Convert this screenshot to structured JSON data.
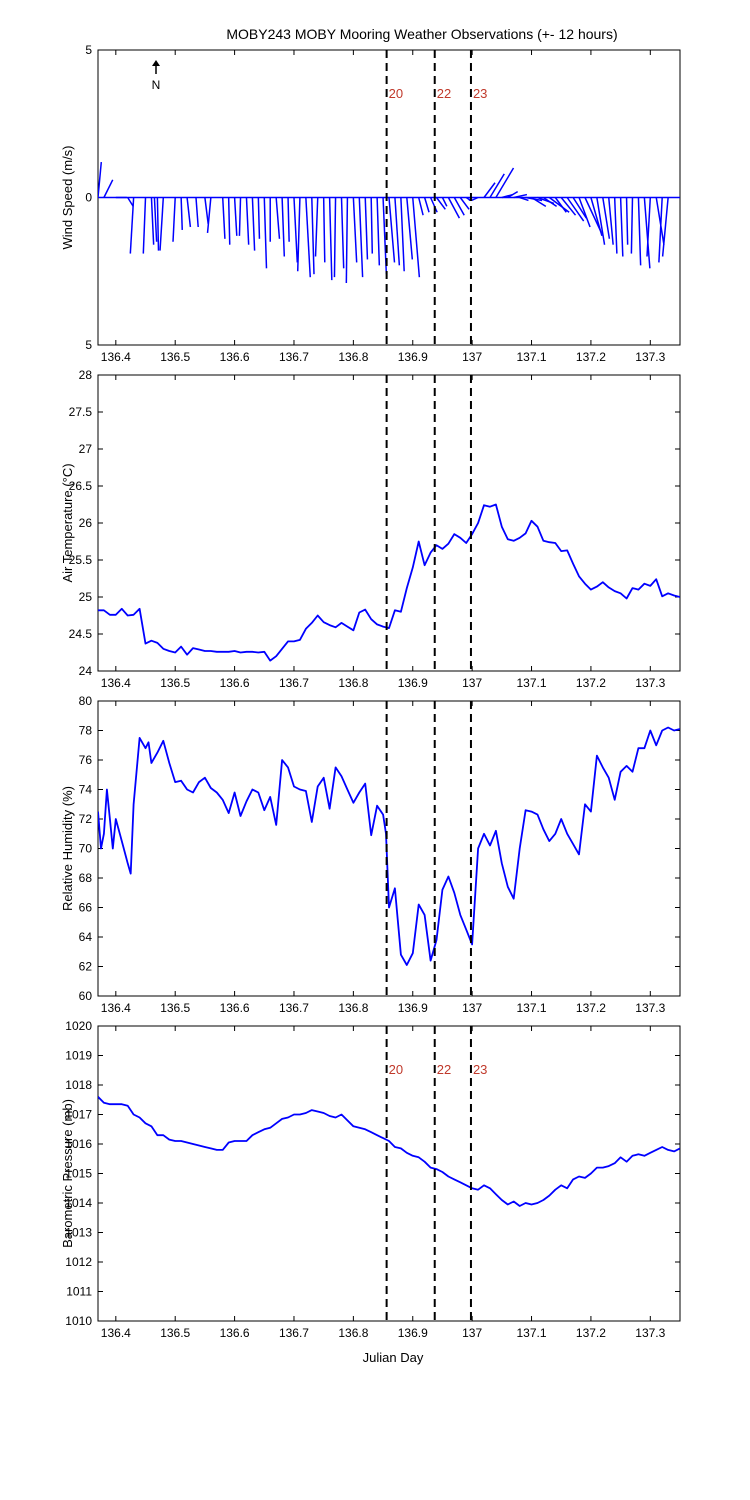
{
  "title": "MOBY243 MOBY Mooring Weather Observations (+- 12 hours)",
  "north_label": "N",
  "xlabel": "Julian Day",
  "x_ticks": [
    "136.4",
    "136.5",
    "136.6",
    "136.7",
    "136.8",
    "136.9",
    "137",
    "137.1",
    "137.2",
    "137.3"
  ],
  "event_lines": [
    {
      "label": "20",
      "x": 136.856
    },
    {
      "label": "22",
      "x": 136.937
    },
    {
      "label": "23",
      "x": 136.998
    }
  ],
  "colors": {
    "line": "#0000ff",
    "event_label": "#c0392b",
    "axis": "#000000"
  },
  "chart_data": [
    {
      "type": "line",
      "name": "wind",
      "ylabel": "Wind Speed (m/s)",
      "xlim": [
        136.37,
        137.35
      ],
      "ylim": [
        -5,
        5
      ],
      "y_ticks": [
        {
          "v": 5,
          "t": "5"
        },
        {
          "v": 0,
          "t": "0"
        },
        {
          "v": -5,
          "t": "5"
        }
      ],
      "show_event_labels": true,
      "note": "wind vectors drawn from baseline; values are (u, v) in m/s",
      "vectors": {
        "x": [
          136.37,
          136.38,
          136.4,
          136.42,
          136.43,
          136.45,
          136.46,
          136.465,
          136.47,
          136.48,
          136.5,
          136.51,
          136.52,
          136.535,
          136.55,
          136.56,
          136.58,
          136.59,
          136.6,
          136.61,
          136.62,
          136.63,
          136.64,
          136.65,
          136.66,
          136.67,
          136.68,
          136.69,
          136.7,
          136.71,
          136.72,
          136.73,
          136.74,
          136.75,
          136.76,
          136.77,
          136.78,
          136.79,
          136.8,
          136.81,
          136.82,
          136.83,
          136.84,
          136.85,
          136.86,
          136.87,
          136.88,
          136.89,
          136.9,
          136.91,
          136.92,
          136.93,
          136.94,
          136.95,
          136.96,
          136.97,
          136.98,
          136.99,
          137.0,
          137.01,
          137.02,
          137.03,
          137.04,
          137.05,
          137.06,
          137.07,
          137.08,
          137.09,
          137.1,
          137.11,
          137.12,
          137.13,
          137.14,
          137.15,
          137.16,
          137.17,
          137.18,
          137.19,
          137.2,
          137.21,
          137.22,
          137.23,
          137.24,
          137.25,
          137.26,
          137.27,
          137.28,
          137.29,
          137.3,
          137.31,
          137.32,
          137.33
        ],
        "u": [
          0.3,
          0.8,
          1.0,
          0.5,
          -0.3,
          -0.2,
          0.2,
          0.2,
          0.1,
          -0.3,
          -0.2,
          0.1,
          0.3,
          0.2,
          0.3,
          -0.3,
          0.2,
          0.1,
          0.2,
          -0.1,
          0.2,
          0.2,
          0.1,
          0.2,
          0.0,
          0.3,
          0.2,
          0.1,
          0.3,
          -0.2,
          0.4,
          0.2,
          -0.2,
          0.1,
          0.2,
          -0.1,
          0.2,
          -0.1,
          0.3,
          0.3,
          0.2,
          0.1,
          0.2,
          0.3,
          0.5,
          0.4,
          0.3,
          0.5,
          0.6,
          0.4,
          0.4,
          0.6,
          0.8,
          0.4,
          1.0,
          0.9,
          0.8,
          0.4,
          -0.3,
          -0.6,
          1.0,
          1.3,
          1.6,
          1.0,
          0.9,
          1.2,
          0.8,
          1.5,
          1.3,
          1.5,
          1.2,
          1.8,
          1.0,
          1.3,
          1.5,
          1.2,
          1.0,
          1.5,
          1.0,
          0.7,
          0.6,
          0.4,
          0.2,
          0.2,
          0.1,
          -0.1,
          0.2,
          0.5,
          -0.3,
          0.7,
          -0.3,
          -0.5
        ],
        "v": [
          1.2,
          0.6,
          0.0,
          -0.3,
          -1.9,
          -1.9,
          -1.6,
          -1.5,
          -1.8,
          -1.8,
          -1.5,
          -1.1,
          -1.0,
          -1.0,
          -0.9,
          -1.2,
          -1.4,
          -1.6,
          -1.3,
          -1.3,
          -1.6,
          -1.8,
          -1.4,
          -2.4,
          -1.5,
          -1.4,
          -2.0,
          -1.5,
          -2.2,
          -2.5,
          -2.7,
          -2.6,
          -2.0,
          -2.2,
          -2.8,
          -2.7,
          -2.4,
          -2.9,
          -2.2,
          -2.7,
          -2.1,
          -1.9,
          -2.3,
          -2.6,
          -2.2,
          -2.3,
          -2.5,
          -2.1,
          -2.7,
          -0.6,
          -0.5,
          -0.5,
          -0.4,
          -0.3,
          -0.7,
          -0.6,
          -0.4,
          -0.1,
          -0.1,
          -0.1,
          0.5,
          0.8,
          1.0,
          0.1,
          0.2,
          0.1,
          -0.1,
          -0.1,
          -0.3,
          -0.2,
          -0.3,
          -0.5,
          -0.5,
          -0.6,
          -0.8,
          -0.7,
          -1.0,
          -1.2,
          -1.3,
          -1.6,
          -1.4,
          -1.6,
          -1.9,
          -2.0,
          -1.6,
          -1.9,
          -2.3,
          -2.4,
          -2.0,
          -1.6,
          -2.2,
          -2.0
        ]
      }
    },
    {
      "type": "line",
      "name": "air_temp",
      "ylabel": "Air Temperature (°C)",
      "xlim": [
        136.37,
        137.35
      ],
      "ylim": [
        24,
        28
      ],
      "y_ticks": [
        {
          "v": 24,
          "t": "24"
        },
        {
          "v": 24.5,
          "t": "24.5"
        },
        {
          "v": 25,
          "t": "25"
        },
        {
          "v": 25.5,
          "t": "25.5"
        },
        {
          "v": 26,
          "t": "26"
        },
        {
          "v": 26.5,
          "t": "26.5"
        },
        {
          "v": 27,
          "t": "27"
        },
        {
          "v": 27.5,
          "t": "27.5"
        },
        {
          "v": 28,
          "t": "28"
        }
      ],
      "show_event_labels": false,
      "x": [
        136.37,
        136.38,
        136.39,
        136.4,
        136.41,
        136.42,
        136.43,
        136.44,
        136.45,
        136.46,
        136.47,
        136.48,
        136.49,
        136.5,
        136.51,
        136.52,
        136.53,
        136.54,
        136.55,
        136.56,
        136.57,
        136.58,
        136.59,
        136.6,
        136.61,
        136.62,
        136.63,
        136.64,
        136.65,
        136.66,
        136.67,
        136.68,
        136.69,
        136.7,
        136.71,
        136.72,
        136.73,
        136.74,
        136.75,
        136.76,
        136.77,
        136.78,
        136.79,
        136.8,
        136.81,
        136.82,
        136.83,
        136.84,
        136.85,
        136.86,
        136.87,
        136.88,
        136.89,
        136.9,
        136.91,
        136.92,
        136.93,
        136.94,
        136.95,
        136.96,
        136.97,
        136.98,
        136.99,
        137.0,
        137.01,
        137.02,
        137.03,
        137.04,
        137.05,
        137.06,
        137.07,
        137.08,
        137.09,
        137.1,
        137.11,
        137.12,
        137.13,
        137.14,
        137.15,
        137.16,
        137.17,
        137.18,
        137.19,
        137.2,
        137.21,
        137.22,
        137.23,
        137.24,
        137.25,
        137.26,
        137.27,
        137.28,
        137.29,
        137.3,
        137.31,
        137.32,
        137.33,
        137.34,
        137.35
      ],
      "y": [
        24.82,
        24.82,
        24.76,
        24.76,
        24.84,
        24.75,
        24.76,
        24.84,
        24.37,
        24.41,
        24.38,
        24.3,
        24.27,
        24.25,
        24.33,
        24.22,
        24.31,
        24.29,
        24.27,
        24.27,
        24.26,
        24.26,
        24.26,
        24.27,
        24.25,
        24.26,
        24.26,
        24.25,
        24.26,
        24.14,
        24.2,
        24.3,
        24.4,
        24.4,
        24.42,
        24.57,
        24.65,
        24.75,
        24.66,
        24.62,
        24.59,
        24.65,
        24.6,
        24.55,
        24.79,
        24.83,
        24.7,
        24.63,
        24.6,
        24.58,
        24.82,
        24.8,
        25.12,
        25.4,
        25.75,
        25.43,
        25.6,
        25.7,
        25.65,
        25.72,
        25.85,
        25.8,
        25.73,
        25.85,
        26.0,
        26.24,
        26.22,
        26.25,
        25.95,
        25.78,
        25.76,
        25.8,
        25.86,
        26.03,
        25.95,
        25.76,
        25.74,
        25.73,
        25.62,
        25.63,
        25.45,
        25.28,
        25.18,
        25.1,
        25.14,
        25.2,
        25.13,
        25.08,
        25.05,
        24.98,
        25.12,
        25.1,
        25.18,
        25.15,
        25.24,
        25.01,
        25.05,
        25.02,
        25.0
      ]
    },
    {
      "type": "line",
      "name": "humidity",
      "ylabel": "Relative Humidity (%)",
      "xlim": [
        136.37,
        137.35
      ],
      "ylim": [
        60,
        80
      ],
      "y_ticks": [
        {
          "v": 60,
          "t": "60"
        },
        {
          "v": 62,
          "t": "62"
        },
        {
          "v": 64,
          "t": "64"
        },
        {
          "v": 66,
          "t": "66"
        },
        {
          "v": 68,
          "t": "68"
        },
        {
          "v": 70,
          "t": "70"
        },
        {
          "v": 72,
          "t": "72"
        },
        {
          "v": 74,
          "t": "74"
        },
        {
          "v": 76,
          "t": "76"
        },
        {
          "v": 78,
          "t": "78"
        },
        {
          "v": 80,
          "t": "80"
        }
      ],
      "show_event_labels": false,
      "x": [
        136.37,
        136.375,
        136.38,
        136.385,
        136.39,
        136.395,
        136.4,
        136.41,
        136.42,
        136.425,
        136.43,
        136.44,
        136.45,
        136.455,
        136.46,
        136.47,
        136.48,
        136.49,
        136.5,
        136.51,
        136.52,
        136.53,
        136.54,
        136.55,
        136.56,
        136.57,
        136.58,
        136.59,
        136.6,
        136.61,
        136.62,
        136.63,
        136.64,
        136.65,
        136.66,
        136.67,
        136.68,
        136.69,
        136.7,
        136.71,
        136.72,
        136.73,
        136.74,
        136.75,
        136.76,
        136.77,
        136.78,
        136.79,
        136.8,
        136.81,
        136.82,
        136.83,
        136.84,
        136.85,
        136.855,
        136.86,
        136.87,
        136.88,
        136.89,
        136.9,
        136.91,
        136.92,
        136.93,
        136.94,
        136.95,
        136.96,
        136.97,
        136.98,
        136.99,
        137.0,
        137.01,
        137.02,
        137.03,
        137.04,
        137.05,
        137.06,
        137.07,
        137.08,
        137.09,
        137.1,
        137.11,
        137.12,
        137.13,
        137.14,
        137.15,
        137.16,
        137.17,
        137.18,
        137.19,
        137.2,
        137.21,
        137.22,
        137.23,
        137.24,
        137.25,
        137.26,
        137.27,
        137.28,
        137.29,
        137.3,
        137.31,
        137.32,
        137.33,
        137.34,
        137.35
      ],
      "y": [
        72.5,
        70.0,
        71.0,
        74.0,
        72.0,
        70.0,
        72.0,
        70.5,
        69.0,
        68.3,
        73.0,
        77.5,
        76.8,
        77.2,
        75.8,
        76.5,
        77.3,
        75.8,
        74.5,
        74.6,
        74.0,
        73.8,
        74.5,
        74.8,
        74.1,
        73.8,
        73.3,
        72.4,
        73.8,
        72.2,
        73.2,
        74.0,
        73.8,
        72.6,
        73.5,
        71.6,
        76.0,
        75.5,
        74.2,
        74.0,
        73.9,
        71.8,
        74.2,
        74.8,
        72.7,
        75.5,
        74.9,
        74.0,
        73.1,
        73.8,
        74.4,
        70.9,
        72.9,
        72.3,
        71.0,
        66.0,
        67.3,
        62.8,
        62.1,
        62.9,
        66.2,
        65.5,
        62.4,
        63.8,
        67.2,
        68.1,
        67.0,
        65.5,
        64.5,
        63.5,
        70.0,
        71.0,
        70.2,
        71.2,
        69.0,
        67.4,
        66.6,
        70.0,
        72.6,
        72.5,
        72.3,
        71.3,
        70.5,
        71.0,
        72.0,
        71.0,
        70.3,
        69.6,
        73.0,
        72.5,
        76.3,
        75.5,
        74.8,
        73.3,
        75.2,
        75.6,
        75.2,
        76.8,
        76.8,
        78.0,
        77.0,
        78.0,
        78.2,
        78.0,
        78.1
      ]
    },
    {
      "type": "line",
      "name": "pressure",
      "ylabel": "Barometric Pressure (mb)",
      "xlim": [
        136.37,
        137.35
      ],
      "ylim": [
        1010,
        1020
      ],
      "y_ticks": [
        {
          "v": 1010,
          "t": "1010"
        },
        {
          "v": 1011,
          "t": "1011"
        },
        {
          "v": 1012,
          "t": "1012"
        },
        {
          "v": 1013,
          "t": "1013"
        },
        {
          "v": 1014,
          "t": "1014"
        },
        {
          "v": 1015,
          "t": "1015"
        },
        {
          "v": 1016,
          "t": "1016"
        },
        {
          "v": 1017,
          "t": "1017"
        },
        {
          "v": 1018,
          "t": "1018"
        },
        {
          "v": 1019,
          "t": "1019"
        },
        {
          "v": 1020,
          "t": "1020"
        }
      ],
      "show_event_labels": true,
      "x": [
        136.37,
        136.38,
        136.39,
        136.4,
        136.41,
        136.42,
        136.43,
        136.44,
        136.45,
        136.46,
        136.47,
        136.48,
        136.49,
        136.5,
        136.51,
        136.52,
        136.53,
        136.54,
        136.55,
        136.56,
        136.57,
        136.58,
        136.59,
        136.6,
        136.61,
        136.62,
        136.63,
        136.64,
        136.65,
        136.66,
        136.67,
        136.68,
        136.69,
        136.7,
        136.71,
        136.72,
        136.73,
        136.74,
        136.75,
        136.76,
        136.77,
        136.78,
        136.79,
        136.8,
        136.81,
        136.82,
        136.83,
        136.84,
        136.85,
        136.86,
        136.87,
        136.88,
        136.89,
        136.9,
        136.91,
        136.92,
        136.93,
        136.94,
        136.95,
        136.96,
        136.97,
        136.98,
        136.99,
        137.0,
        137.01,
        137.02,
        137.03,
        137.04,
        137.05,
        137.06,
        137.07,
        137.08,
        137.09,
        137.1,
        137.11,
        137.12,
        137.13,
        137.14,
        137.15,
        137.16,
        137.17,
        137.18,
        137.19,
        137.2,
        137.21,
        137.22,
        137.23,
        137.24,
        137.25,
        137.26,
        137.27,
        137.28,
        137.29,
        137.3,
        137.31,
        137.32,
        137.33,
        137.34,
        137.35
      ],
      "y": [
        1017.6,
        1017.4,
        1017.35,
        1017.35,
        1017.35,
        1017.3,
        1017.0,
        1016.9,
        1016.7,
        1016.6,
        1016.3,
        1016.3,
        1016.15,
        1016.1,
        1016.1,
        1016.05,
        1016.0,
        1015.95,
        1015.9,
        1015.85,
        1015.8,
        1015.8,
        1016.05,
        1016.1,
        1016.1,
        1016.1,
        1016.3,
        1016.4,
        1016.5,
        1016.55,
        1016.7,
        1016.85,
        1016.9,
        1017.0,
        1017.0,
        1017.05,
        1017.15,
        1017.1,
        1017.05,
        1016.95,
        1016.9,
        1017.0,
        1016.8,
        1016.6,
        1016.55,
        1016.5,
        1016.4,
        1016.3,
        1016.2,
        1016.1,
        1015.9,
        1015.85,
        1015.7,
        1015.6,
        1015.55,
        1015.4,
        1015.2,
        1015.15,
        1015.05,
        1014.9,
        1014.8,
        1014.7,
        1014.6,
        1014.5,
        1014.45,
        1014.6,
        1014.5,
        1014.3,
        1014.1,
        1013.95,
        1014.05,
        1013.9,
        1014.0,
        1013.95,
        1014.0,
        1014.1,
        1014.25,
        1014.45,
        1014.6,
        1014.5,
        1014.8,
        1014.9,
        1014.85,
        1015.0,
        1015.2,
        1015.2,
        1015.25,
        1015.35,
        1015.55,
        1015.4,
        1015.6,
        1015.65,
        1015.6,
        1015.7,
        1015.8,
        1015.9,
        1015.8,
        1015.75,
        1015.85
      ]
    }
  ]
}
